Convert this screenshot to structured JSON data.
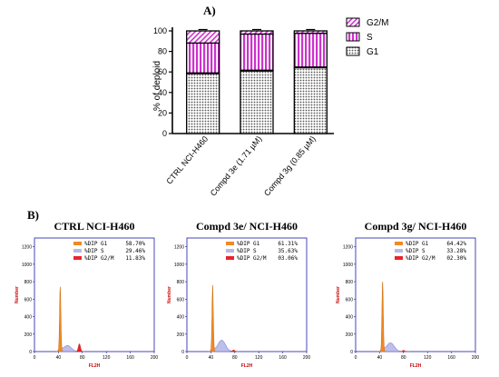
{
  "panel_a_label": "A)",
  "panel_b_label": "B)",
  "chart_data": [
    {
      "type": "bar",
      "stacked": true,
      "categories": [
        "CTRL NCI-H460",
        "Compd 3e (1.71 µM)",
        "Compd 3g (0.85 µM)"
      ],
      "series": [
        {
          "name": "G1",
          "values": [
            58.7,
            61.31,
            64.42
          ]
        },
        {
          "name": "S",
          "values": [
            29.46,
            35.63,
            33.28
          ]
        },
        {
          "name": "G2/M",
          "values": [
            11.83,
            3.06,
            2.3
          ]
        }
      ],
      "ylabel": "% of deploid",
      "ylim": [
        0,
        100
      ],
      "yticks": [
        "0",
        "20",
        "40",
        "60",
        "80",
        "100"
      ],
      "legend": "top-right",
      "colors": {
        "G1": "#ffffff",
        "S": "#cc33cc",
        "G2/M": "#cc33cc"
      }
    },
    {
      "type": "area",
      "title": "CTRL NCI-H460",
      "xlabel": "FL2H",
      "ylabel": "Number",
      "xticks": [
        "0",
        "40",
        "80",
        "120",
        "160",
        "200"
      ],
      "yticks": [
        "0",
        "200",
        "400",
        "600",
        "800",
        "1000",
        "1200"
      ],
      "xlim": [
        0,
        200
      ],
      "ylim": [
        0,
        1300
      ],
      "stats": [
        {
          "label": "%DIP G1",
          "value": "58.70%",
          "color": "#f08a24"
        },
        {
          "label": "%DIP S",
          "value": "29.46%",
          "color": "#b8b8e8"
        },
        {
          "label": "%DIP G2/M",
          "value": "11.83%",
          "color": "#e8232a"
        }
      ],
      "peaks": {
        "g1_pos": 43,
        "g1_height": 740,
        "s_pos": 55,
        "s_height": 70,
        "g2_pos": 75,
        "g2_height": 90
      }
    },
    {
      "type": "area",
      "title": "Compd 3e/ NCI-H460",
      "xlabel": "FL2H",
      "ylabel": "Number",
      "xticks": [
        "0",
        "40",
        "80",
        "120",
        "160",
        "200"
      ],
      "yticks": [
        "0",
        "200",
        "400",
        "600",
        "800",
        "1000",
        "1200"
      ],
      "xlim": [
        0,
        200
      ],
      "ylim": [
        0,
        1300
      ],
      "stats": [
        {
          "label": "%DIP G1",
          "value": "61.31%",
          "color": "#f08a24"
        },
        {
          "label": "%DIP S",
          "value": "35.63%",
          "color": "#b8b8e8"
        },
        {
          "label": "%DIP G2/M",
          "value": "03.06%",
          "color": "#e8232a"
        }
      ],
      "peaks": {
        "g1_pos": 43,
        "g1_height": 760,
        "s_pos": 58,
        "s_height": 130,
        "g2_pos": 78,
        "g2_height": 20
      }
    },
    {
      "type": "area",
      "title": "Compd 3g/ NCI-H460",
      "xlabel": "FL2H",
      "ylabel": "Number",
      "xticks": [
        "0",
        "40",
        "80",
        "120",
        "160",
        "200"
      ],
      "yticks": [
        "0",
        "200",
        "400",
        "600",
        "800",
        "1000",
        "1200"
      ],
      "xlim": [
        0,
        200
      ],
      "ylim": [
        0,
        1300
      ],
      "stats": [
        {
          "label": "%DIP G1",
          "value": "64.42%",
          "color": "#f08a24"
        },
        {
          "label": "%DIP S",
          "value": "33.28%",
          "color": "#b8b8e8"
        },
        {
          "label": "%DIP G2/M",
          "value": "02.30%",
          "color": "#e8232a"
        }
      ],
      "peaks": {
        "g1_pos": 45,
        "g1_height": 800,
        "s_pos": 58,
        "s_height": 100,
        "g2_pos": 80,
        "g2_height": 15
      }
    }
  ]
}
